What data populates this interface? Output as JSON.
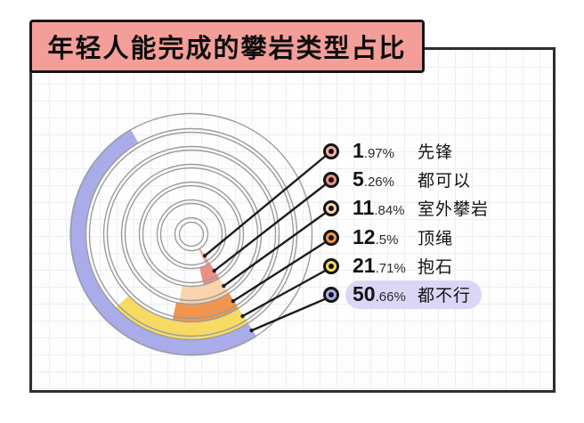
{
  "title": "年轻人能完成的攀岩类型占比",
  "colors": {
    "banner_fill": "#f49e99",
    "highlight_pill": "#d9d6f6",
    "frame_border": "#2f2f2f",
    "ring_line": "#9c9c9c",
    "leader_line": "#1c1c1c"
  },
  "chart_data": {
    "type": "radial-bar",
    "title": "年轻人能完成的攀岩类型占比",
    "unit": "%",
    "legend_position": "right",
    "note": "concentric rings, innermost ring = first series item; each arc length = percent of full circle, all arcs anchored on a common ray toward lower-right",
    "series": [
      {
        "label": "先锋",
        "pct": 1.97,
        "color": "#f4afaa"
      },
      {
        "label": "都可以",
        "pct": 5.26,
        "color": "#ef8e88"
      },
      {
        "label": "室外攀岩",
        "pct": 11.84,
        "color": "#f8d3ae"
      },
      {
        "label": "顶绳",
        "pct": 12.5,
        "color": "#f0964f"
      },
      {
        "label": "抱石",
        "pct": 21.71,
        "color": "#f6da64"
      },
      {
        "label": "都不行",
        "pct": 50.66,
        "color": "#a9ace9",
        "highlighted": true
      }
    ]
  }
}
